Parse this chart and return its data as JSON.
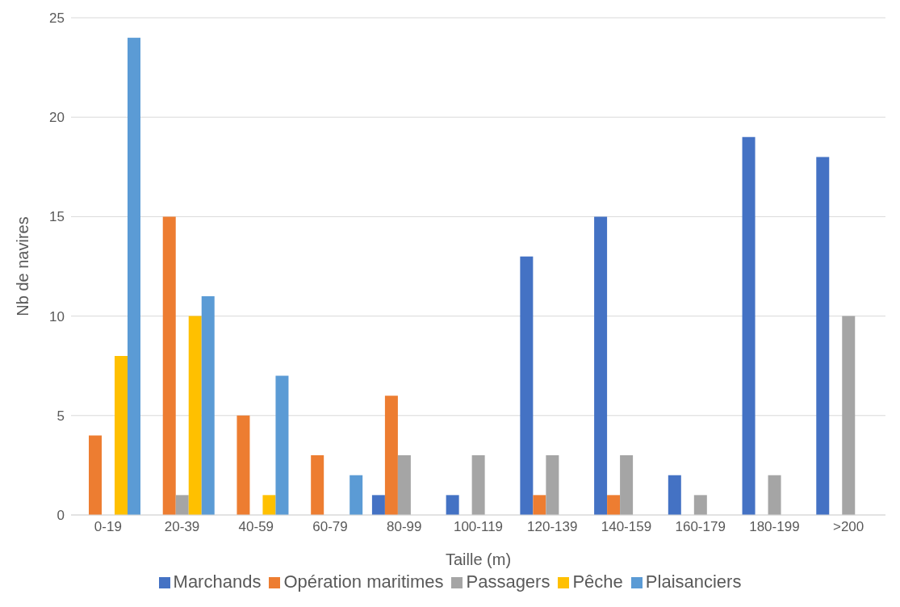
{
  "chart_data": {
    "type": "bar",
    "xlabel": "Taille (m)",
    "ylabel": "Nb de navires",
    "categories": [
      "0-19",
      "20-39",
      "40-59",
      "60-79",
      "80-99",
      "100-119",
      "120-139",
      "140-159",
      "160-179",
      "180-199",
      ">200"
    ],
    "series": [
      {
        "name": "Marchands",
        "color": "#4472c4",
        "values": [
          0,
          0,
          0,
          0,
          1,
          1,
          13,
          15,
          2,
          19,
          18
        ]
      },
      {
        "name": "Opération maritimes",
        "color": "#ed7d31",
        "values": [
          4,
          15,
          5,
          3,
          6,
          0,
          1,
          1,
          0,
          0,
          0
        ]
      },
      {
        "name": "Passagers",
        "color": "#a5a5a5",
        "values": [
          0,
          1,
          0,
          0,
          3,
          3,
          3,
          3,
          1,
          2,
          10
        ]
      },
      {
        "name": "Pêche",
        "color": "#ffc000",
        "values": [
          8,
          10,
          1,
          0,
          0,
          0,
          0,
          0,
          0,
          0,
          0
        ]
      },
      {
        "name": "Plaisanciers",
        "color": "#5b9bd5",
        "values": [
          24,
          11,
          7,
          2,
          0,
          0,
          0,
          0,
          0,
          0,
          0
        ]
      }
    ],
    "ylim": [
      0,
      25
    ],
    "yticks": [
      0,
      5,
      10,
      15,
      20,
      25
    ],
    "grid": "y",
    "legend": "bottom"
  }
}
